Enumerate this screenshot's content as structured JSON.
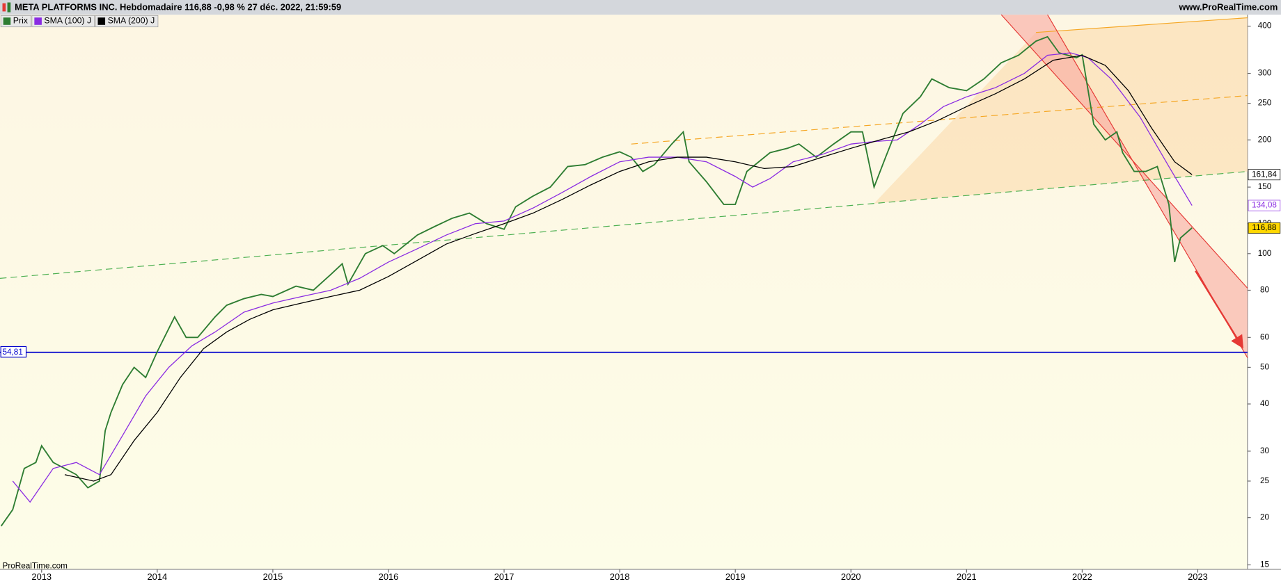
{
  "chart_data": {
    "type": "line",
    "title": "META PLATFORMS INC. Hebdomadaire 116,88 -0,98 % 27 déc. 2022, 21:59:59",
    "source": "www.ProRealTime.com",
    "watermark": "ProRealTime.com",
    "log_scale": true,
    "xlim": [
      2012.64,
      2023.43
    ],
    "xticks": [
      2013,
      2014,
      2015,
      2016,
      2017,
      2018,
      2019,
      2020,
      2021,
      2022,
      2023
    ],
    "ylim": [
      14.6,
      429
    ],
    "yticks": [
      15,
      20,
      25,
      30,
      40,
      50,
      60,
      80,
      100,
      120,
      150,
      200,
      250,
      300,
      400
    ],
    "series": [
      {
        "name": "Prix",
        "color": "#2e7d32",
        "x": [
          2012.65,
          2012.75,
          2012.85,
          2012.95,
          2013.0,
          2013.1,
          2013.2,
          2013.3,
          2013.4,
          2013.5,
          2013.55,
          2013.6,
          2013.7,
          2013.8,
          2013.9,
          2014.0,
          2014.15,
          2014.25,
          2014.35,
          2014.5,
          2014.6,
          2014.75,
          2014.9,
          2015.0,
          2015.2,
          2015.35,
          2015.5,
          2015.6,
          2015.65,
          2015.8,
          2015.95,
          2016.05,
          2016.25,
          2016.4,
          2016.55,
          2016.7,
          2016.85,
          2017.0,
          2017.1,
          2017.25,
          2017.4,
          2017.55,
          2017.7,
          2017.85,
          2018.0,
          2018.1,
          2018.2,
          2018.3,
          2018.45,
          2018.55,
          2018.6,
          2018.75,
          2018.9,
          2019.0,
          2019.1,
          2019.3,
          2019.45,
          2019.55,
          2019.7,
          2019.85,
          2020.0,
          2020.1,
          2020.2,
          2020.3,
          2020.45,
          2020.6,
          2020.7,
          2020.85,
          2021.0,
          2021.15,
          2021.3,
          2021.45,
          2021.6,
          2021.7,
          2021.8,
          2021.95,
          2022.0,
          2022.1,
          2022.2,
          2022.3,
          2022.35,
          2022.45,
          2022.55,
          2022.65,
          2022.75,
          2022.8,
          2022.85,
          2022.95
        ],
        "values": [
          19,
          21,
          27,
          28,
          31,
          28,
          27,
          26,
          24,
          25,
          34,
          38,
          45,
          50,
          47,
          55,
          68,
          60,
          60,
          68,
          73,
          76,
          78,
          77,
          82,
          80,
          88,
          94,
          83,
          100,
          105,
          100,
          112,
          118,
          124,
          128,
          120,
          116,
          133,
          142,
          150,
          170,
          172,
          180,
          186,
          180,
          165,
          172,
          195,
          210,
          175,
          155,
          135,
          135,
          165,
          185,
          190,
          195,
          180,
          195,
          210,
          210,
          150,
          180,
          235,
          260,
          290,
          275,
          270,
          290,
          320,
          335,
          365,
          375,
          340,
          330,
          336,
          220,
          200,
          210,
          185,
          165,
          165,
          170,
          135,
          95,
          110,
          117
        ]
      },
      {
        "name": "SMA (100) J",
        "color": "#8a2be2",
        "x": [
          2012.75,
          2012.9,
          2013.1,
          2013.3,
          2013.5,
          2013.7,
          2013.9,
          2014.1,
          2014.3,
          2014.5,
          2014.75,
          2015.0,
          2015.25,
          2015.5,
          2015.75,
          2016.0,
          2016.25,
          2016.5,
          2016.75,
          2017.0,
          2017.25,
          2017.5,
          2017.75,
          2018.0,
          2018.25,
          2018.5,
          2018.75,
          2019.0,
          2019.15,
          2019.3,
          2019.5,
          2019.75,
          2020.0,
          2020.2,
          2020.4,
          2020.6,
          2020.8,
          2021.0,
          2021.25,
          2021.5,
          2021.7,
          2021.9,
          2022.05,
          2022.25,
          2022.5,
          2022.75,
          2022.95
        ],
        "values": [
          25,
          22,
          27,
          28,
          26,
          33,
          42,
          50,
          57,
          62,
          70,
          74,
          77,
          80,
          86,
          95,
          103,
          112,
          120,
          122,
          132,
          145,
          160,
          175,
          180,
          180,
          175,
          160,
          150,
          158,
          175,
          183,
          195,
          198,
          200,
          220,
          245,
          260,
          275,
          300,
          335,
          340,
          330,
          290,
          230,
          170,
          134.08
        ]
      },
      {
        "name": "SMA (200) J",
        "color": "#000000",
        "x": [
          2013.2,
          2013.45,
          2013.6,
          2013.8,
          2014.0,
          2014.2,
          2014.4,
          2014.6,
          2014.8,
          2015.0,
          2015.25,
          2015.5,
          2015.75,
          2016.0,
          2016.25,
          2016.5,
          2016.75,
          2017.0,
          2017.25,
          2017.5,
          2017.75,
          2018.0,
          2018.25,
          2018.5,
          2018.75,
          2019.0,
          2019.25,
          2019.5,
          2019.75,
          2020.0,
          2020.25,
          2020.5,
          2020.75,
          2021.0,
          2021.25,
          2021.5,
          2021.75,
          2022.0,
          2022.2,
          2022.4,
          2022.6,
          2022.8,
          2022.95
        ],
        "values": [
          26,
          25,
          26,
          32,
          38,
          47,
          56,
          62,
          67,
          71,
          74,
          77,
          80,
          87,
          96,
          106,
          113,
          120,
          128,
          139,
          152,
          165,
          175,
          180,
          180,
          175,
          168,
          170,
          180,
          190,
          200,
          210,
          225,
          245,
          265,
          290,
          325,
          335,
          315,
          270,
          215,
          175,
          161.84
        ]
      }
    ],
    "price_tags": [
      {
        "value": 161.84,
        "label": "161,84",
        "color": "#000000",
        "background": "#ffffff"
      },
      {
        "value": 134.08,
        "label": "134,08",
        "color": "#8a2be2",
        "background": "#ffffff"
      },
      {
        "value": 116.88,
        "label": "116,88",
        "color": "#000000",
        "background": "#ffd700"
      }
    ],
    "hline": {
      "value": 54.81,
      "label": "54,81",
      "color": "#0000cc"
    },
    "trendlines": [
      {
        "points": [
          [
            2012.64,
            86
          ],
          [
            2023.43,
            165
          ]
        ],
        "color": "#4caf50",
        "dash": true
      },
      {
        "points": [
          [
            2018.1,
            195
          ],
          [
            2023.43,
            262
          ]
        ],
        "color": "#f5a623",
        "dash": true
      },
      {
        "points": [
          [
            2021.6,
            385
          ],
          [
            2023.43,
            421
          ]
        ],
        "color": "#f5a623",
        "dash": false
      },
      {
        "points": [
          [
            2021.3,
            429
          ],
          [
            2023.43,
            81
          ]
        ],
        "color": "#e53935",
        "dash": false
      },
      {
        "points": [
          [
            2021.7,
            429
          ],
          [
            2023.43,
            53
          ]
        ],
        "color": "#e53935",
        "dash": false
      },
      {
        "points": [
          [
            2022.98,
            90
          ],
          [
            2023.38,
            57
          ]
        ],
        "color": "#e53935",
        "dash": false,
        "arrow": true
      }
    ]
  }
}
